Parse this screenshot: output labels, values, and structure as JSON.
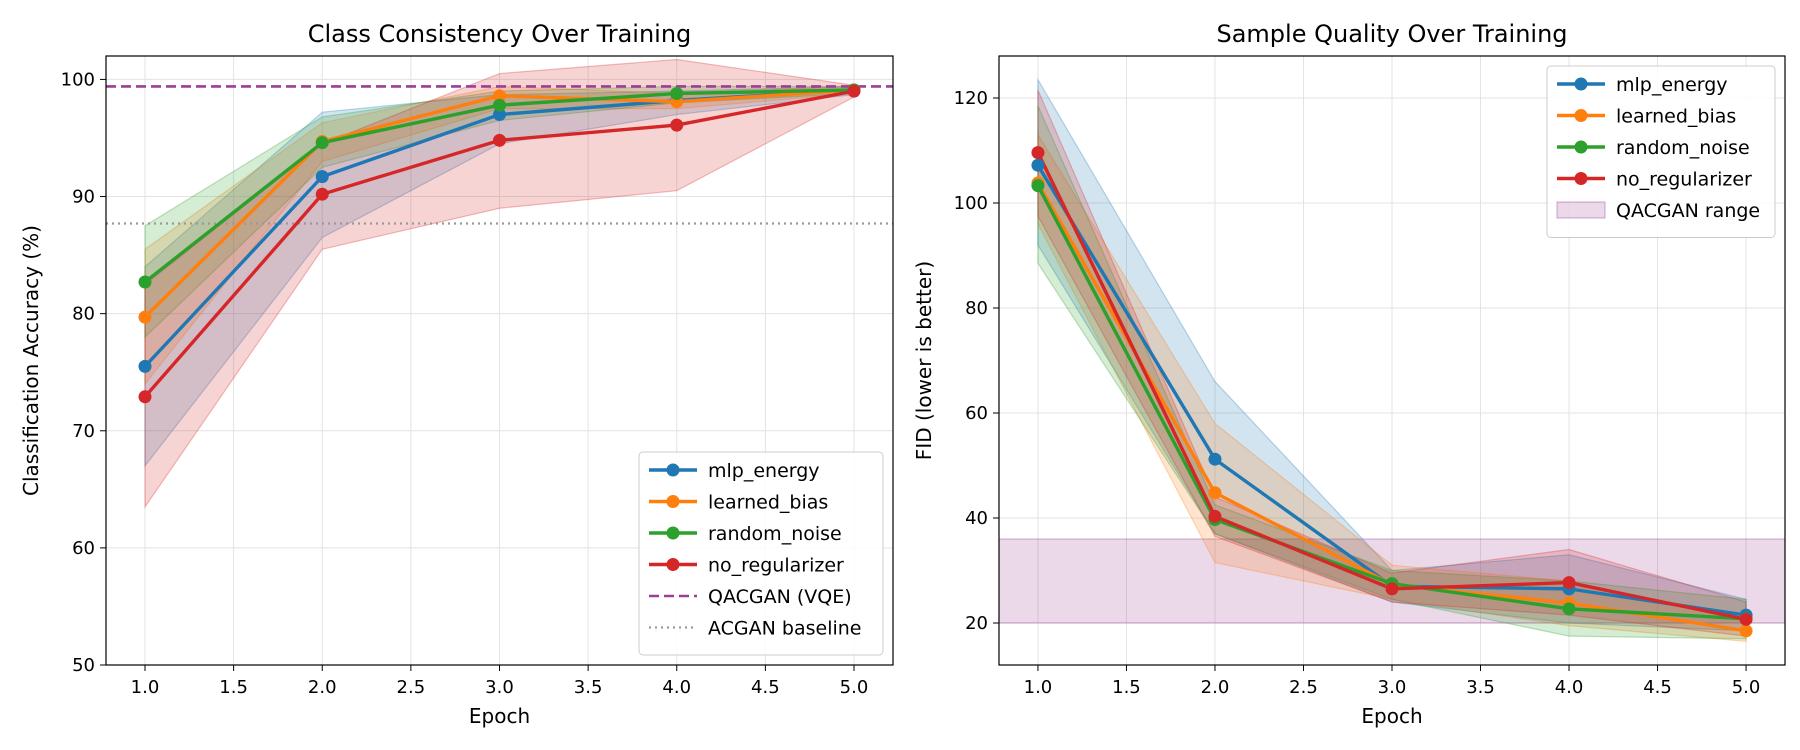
{
  "chart_data": [
    {
      "type": "line",
      "title": "Class Consistency Over Training",
      "xlabel": "Epoch",
      "ylabel": "Classification Accuracy (%)",
      "xlim": [
        0.78,
        5.22
      ],
      "ylim": [
        50,
        102
      ],
      "xticks": [
        "1.0",
        "1.5",
        "2.0",
        "2.5",
        "3.0",
        "3.5",
        "4.0",
        "4.5",
        "5.0"
      ],
      "yticks": [
        "50",
        "60",
        "70",
        "80",
        "90",
        "100"
      ],
      "grid": true,
      "legend_position": "lower-right",
      "x": [
        1,
        2,
        3,
        4,
        5
      ],
      "series": [
        {
          "name": "mlp_energy",
          "color": "#1f77b4",
          "values": [
            75.5,
            91.7,
            97.0,
            98.2,
            99.1
          ],
          "lower": [
            67.0,
            86.5,
            94.5,
            97.0,
            98.7
          ],
          "upper": [
            84.0,
            97.2,
            98.7,
            99.0,
            99.4
          ]
        },
        {
          "name": "learned_bias",
          "color": "#ff7f0e",
          "values": [
            79.7,
            94.7,
            98.6,
            98.1,
            99.1
          ],
          "lower": [
            74.0,
            93.0,
            97.5,
            97.5,
            98.8
          ],
          "upper": [
            85.5,
            96.3,
            99.4,
            98.8,
            99.4
          ]
        },
        {
          "name": "random_noise",
          "color": "#2ca02c",
          "values": [
            82.7,
            94.6,
            97.8,
            98.8,
            99.1
          ],
          "lower": [
            78.0,
            92.5,
            96.5,
            98.0,
            98.8
          ],
          "upper": [
            87.5,
            96.8,
            99.0,
            99.4,
            99.4
          ]
        },
        {
          "name": "no_regularizer",
          "color": "#d62728",
          "values": [
            72.9,
            90.2,
            94.8,
            96.1,
            99.0
          ],
          "lower": [
            63.5,
            85.5,
            89.0,
            90.5,
            98.5
          ],
          "upper": [
            82.5,
            94.5,
            100.5,
            101.7,
            99.5
          ]
        }
      ],
      "reference_lines": [
        {
          "name": "QACGAN (VQE)",
          "value": 99.4,
          "color": "#9b3f96",
          "style": "dashed"
        },
        {
          "name": "ACGAN baseline",
          "value": 87.7,
          "color": "#999999",
          "style": "dotted"
        }
      ]
    },
    {
      "type": "line",
      "title": "Sample Quality Over Training",
      "xlabel": "Epoch",
      "ylabel": "FID (lower is better)",
      "xlim": [
        0.78,
        5.22
      ],
      "ylim": [
        12,
        128
      ],
      "xticks": [
        "1.0",
        "1.5",
        "2.0",
        "2.5",
        "3.0",
        "3.5",
        "4.0",
        "4.5",
        "5.0"
      ],
      "yticks": [
        "20",
        "40",
        "60",
        "80",
        "100",
        "120"
      ],
      "grid": true,
      "legend_position": "top-right",
      "x": [
        1,
        2,
        3,
        4,
        5
      ],
      "series": [
        {
          "name": "mlp_energy",
          "color": "#1f77b4",
          "values": [
            107.2,
            51.2,
            27.0,
            26.5,
            21.5
          ],
          "lower": [
            92.0,
            37.0,
            24.0,
            20.0,
            18.5
          ],
          "upper": [
            123.5,
            66.0,
            30.0,
            33.0,
            24.5
          ]
        },
        {
          "name": "learned_bias",
          "color": "#ff7f0e",
          "values": [
            103.8,
            44.8,
            27.3,
            23.8,
            18.5
          ],
          "lower": [
            96.0,
            31.5,
            24.5,
            19.5,
            16.5
          ],
          "upper": [
            113.0,
            58.0,
            31.0,
            28.0,
            20.5
          ]
        },
        {
          "name": "random_noise",
          "color": "#2ca02c",
          "values": [
            103.3,
            39.7,
            27.5,
            22.7,
            20.8
          ],
          "lower": [
            88.5,
            37.0,
            24.5,
            17.5,
            17.0
          ],
          "upper": [
            118.5,
            42.5,
            30.0,
            28.0,
            24.5
          ]
        },
        {
          "name": "no_regularizer",
          "color": "#d62728",
          "values": [
            109.6,
            40.3,
            26.5,
            27.7,
            20.7
          ],
          "lower": [
            97.5,
            36.5,
            24.0,
            21.5,
            17.5
          ],
          "upper": [
            121.5,
            44.0,
            29.5,
            34.0,
            24.0
          ]
        }
      ],
      "reference_bands": [
        {
          "name": "QACGAN range",
          "from": 20,
          "to": 36,
          "color": "#9b3f96"
        }
      ]
    }
  ]
}
